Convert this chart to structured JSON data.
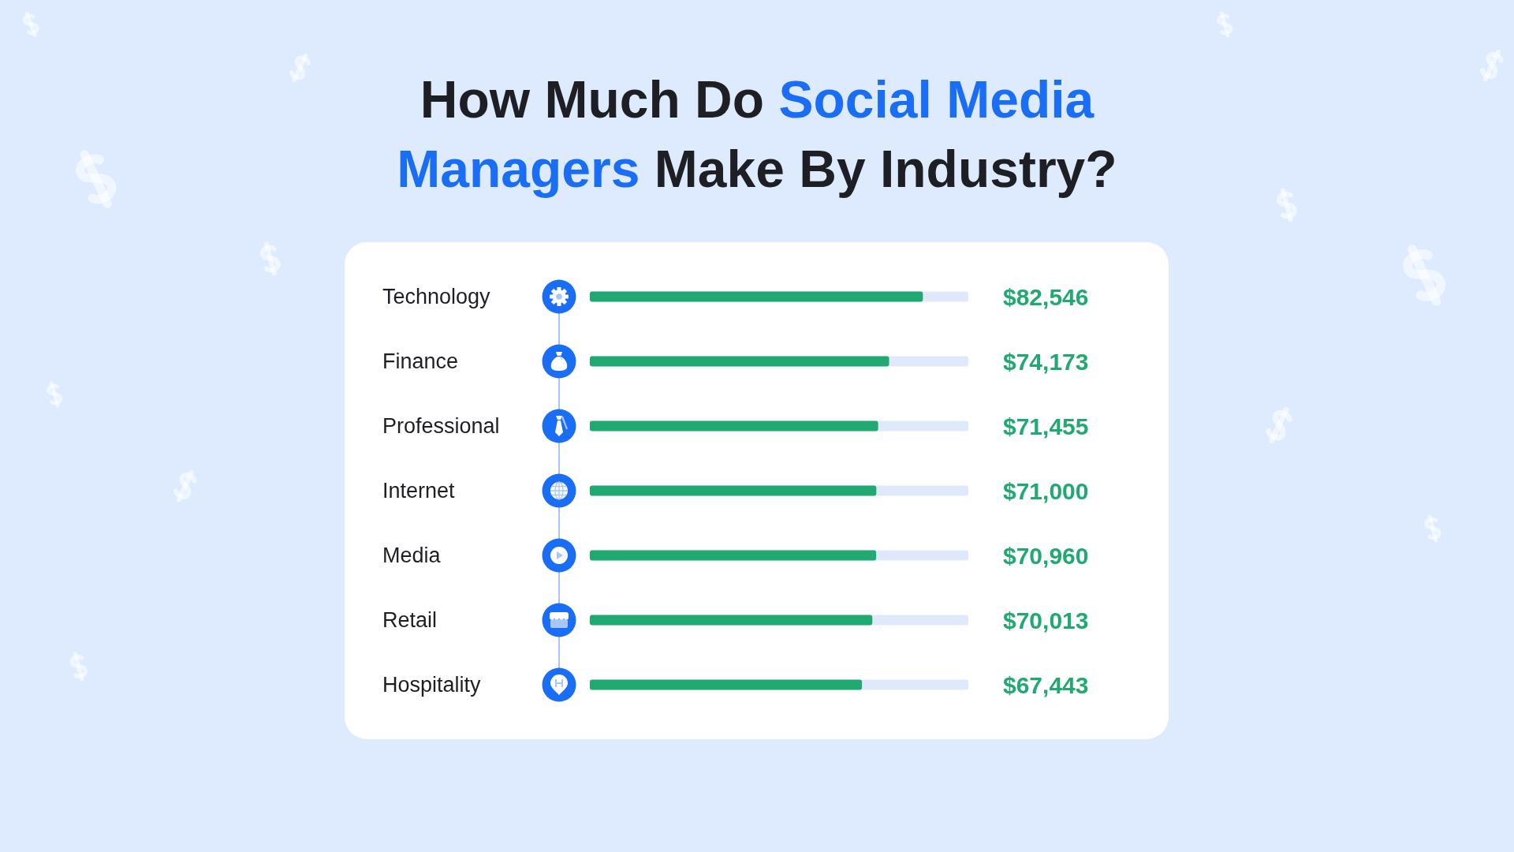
{
  "chart_data": {
    "type": "bar",
    "orientation": "horizontal",
    "title": "How Much Do Social Media Managers Make By Industry?",
    "categories": [
      "Technology",
      "Finance",
      "Professional",
      "Internet",
      "Media",
      "Retail",
      "Hospitality"
    ],
    "values": [
      82546,
      74173,
      71455,
      71000,
      70960,
      70013,
      67443
    ],
    "color": "#21a971",
    "value_labels": [
      "$82,546",
      "$74,173",
      "$71,455",
      "$71,000",
      "$70,960",
      "$70,013",
      "$67,443"
    ]
  }
}
